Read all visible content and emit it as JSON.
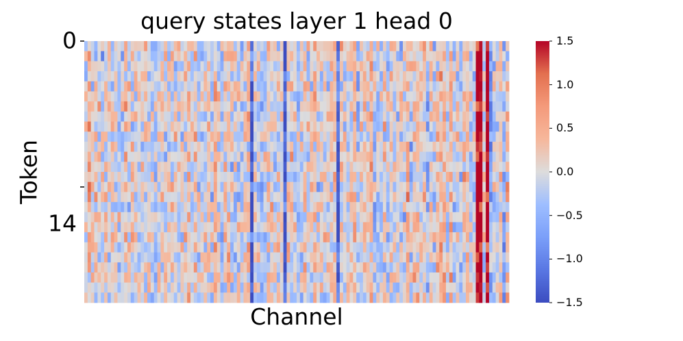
{
  "chart_data": {
    "type": "heatmap",
    "title": "query states layer 1 head 0",
    "xlabel": "Channel",
    "ylabel": "Token",
    "y_ticks": [
      "0",
      "14"
    ],
    "n_rows": 26,
    "n_cols": 128,
    "colormap": "coolwarm",
    "vmin": -1.5,
    "vmax": 1.5,
    "colorbar_ticks": [
      "1.5",
      "1.0",
      "0.5",
      "0.0",
      "−0.5",
      "−1.0",
      "−1.5"
    ],
    "colorbar_tick_values": [
      1.5,
      1.0,
      0.5,
      0.0,
      -0.5,
      -1.0,
      -1.5
    ],
    "strong_positive_channels": [
      118,
      119,
      121
    ],
    "strong_negative_channels": [
      50,
      60,
      76
    ],
    "grid": false
  }
}
